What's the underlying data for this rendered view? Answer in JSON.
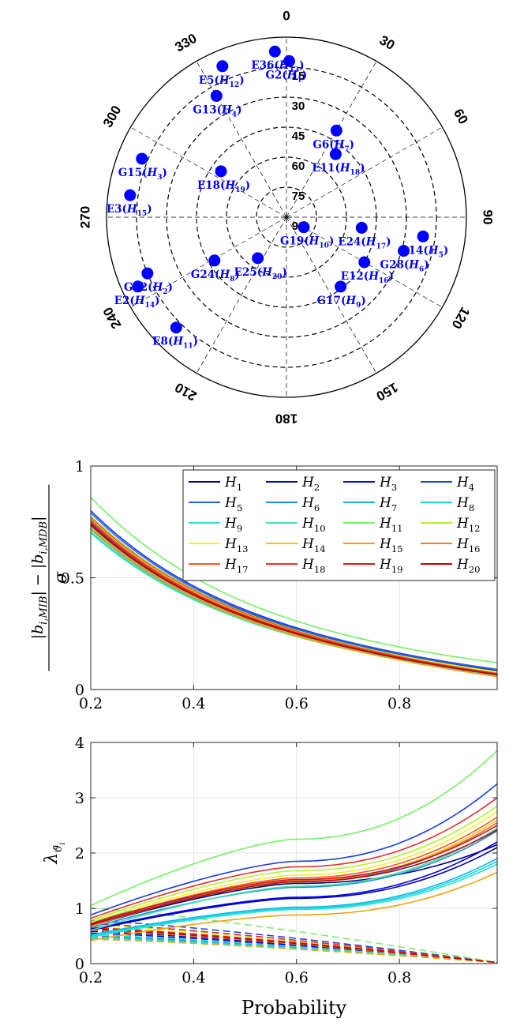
{
  "chart_data": [
    {
      "type": "scatter",
      "subtype": "polar-skyplot",
      "azimuth_tick_labels": [
        "0",
        "30",
        "60",
        "90",
        "120",
        "150",
        "180",
        "210",
        "240",
        "270",
        "300",
        "330"
      ],
      "elevation_tick_labels": [
        "15",
        "30",
        "45",
        "60",
        "75",
        "90"
      ],
      "marker_color": "#0000FF",
      "points": [
        {
          "id": "E36",
          "idx": "13",
          "azimuth": 356,
          "elevation": 7
        },
        {
          "id": "G2",
          "idx": "1",
          "azimuth": 1,
          "elevation": 12
        },
        {
          "id": "E5",
          "idx": "12",
          "azimuth": 337,
          "elevation": 8
        },
        {
          "id": "G13",
          "idx": "4",
          "azimuth": 330,
          "elevation": 20
        },
        {
          "id": "G6",
          "idx": "7",
          "azimuth": 30,
          "elevation": 40
        },
        {
          "id": "E11",
          "idx": "18",
          "azimuth": 38,
          "elevation": 50
        },
        {
          "id": "G15",
          "idx": "3",
          "azimuth": 292,
          "elevation": 12
        },
        {
          "id": "E18",
          "idx": "19",
          "azimuth": 305,
          "elevation": 50
        },
        {
          "id": "E3",
          "idx": "15",
          "azimuth": 278,
          "elevation": 11
        },
        {
          "id": "E24",
          "idx": "17",
          "azimuth": 98,
          "elevation": 52
        },
        {
          "id": "G14",
          "idx": "5",
          "azimuth": 98,
          "elevation": 21
        },
        {
          "id": "G19",
          "idx": "10",
          "azimuth": 120,
          "elevation": 80
        },
        {
          "id": "G28",
          "idx": "6",
          "azimuth": 106,
          "elevation": 29
        },
        {
          "id": "E12",
          "idx": "16",
          "azimuth": 120,
          "elevation": 45
        },
        {
          "id": "G12",
          "idx": "2",
          "azimuth": 248,
          "elevation": 15
        },
        {
          "id": "G24",
          "idx": "8",
          "azimuth": 239,
          "elevation": 48
        },
        {
          "id": "E25",
          "idx": "20",
          "azimuth": 215,
          "elevation": 65
        },
        {
          "id": "G17",
          "idx": "9",
          "azimuth": 142,
          "elevation": 46
        },
        {
          "id": "E2",
          "idx": "14",
          "azimuth": 245,
          "elevation": 8
        },
        {
          "id": "E8",
          "idx": "11",
          "azimuth": 225,
          "elevation": 12
        }
      ]
    },
    {
      "type": "line",
      "xlim": [
        0.2,
        0.99
      ],
      "ylim": [
        0,
        1
      ],
      "xticks": [
        "0.2",
        "0.4",
        "0.6",
        "0.8"
      ],
      "yticks": [
        "0",
        "0.5",
        "1"
      ],
      "ylabel_numerator": "|b_{i,MIB}| − |b_{i,MDB}|",
      "ylabel_denominator": "σ",
      "legend_location": "top-right",
      "grid": true,
      "series": [
        {
          "name": "1",
          "color": "#00007A",
          "start": 0.775,
          "mid": 0.27,
          "end": 0.085
        },
        {
          "name": "2",
          "color": "#0000B3",
          "start": 0.76,
          "mid": 0.262,
          "end": 0.08
        },
        {
          "name": "3",
          "color": "#0000F0",
          "start": 0.745,
          "mid": 0.257,
          "end": 0.075
        },
        {
          "name": "4",
          "color": "#1A3CE6",
          "start": 0.8,
          "mid": 0.28,
          "end": 0.09
        },
        {
          "name": "5",
          "color": "#1F66F0",
          "start": 0.79,
          "mid": 0.275,
          "end": 0.088
        },
        {
          "name": "6",
          "color": "#1C8FE0",
          "start": 0.74,
          "mid": 0.255,
          "end": 0.072
        },
        {
          "name": "7",
          "color": "#12B5E6",
          "start": 0.72,
          "mid": 0.248,
          "end": 0.068
        },
        {
          "name": "8",
          "color": "#12D9E6",
          "start": 0.705,
          "mid": 0.243,
          "end": 0.066
        },
        {
          "name": "9",
          "color": "#26E6CC",
          "start": 0.7,
          "mid": 0.24,
          "end": 0.064
        },
        {
          "name": "10",
          "color": "#45E0A8",
          "start": 0.725,
          "mid": 0.25,
          "end": 0.07
        },
        {
          "name": "11",
          "color": "#73F264",
          "start": 0.86,
          "mid": 0.31,
          "end": 0.12
        },
        {
          "name": "12",
          "color": "#B3F229",
          "start": 0.775,
          "mid": 0.268,
          "end": 0.08
        },
        {
          "name": "13",
          "color": "#F0F026",
          "start": 0.765,
          "mid": 0.263,
          "end": 0.078
        },
        {
          "name": "14",
          "color": "#F2C21A",
          "start": 0.73,
          "mid": 0.25,
          "end": 0.07
        },
        {
          "name": "15",
          "color": "#F2A30D",
          "start": 0.715,
          "mid": 0.243,
          "end": 0.058
        },
        {
          "name": "16",
          "color": "#F08020",
          "start": 0.755,
          "mid": 0.258,
          "end": 0.068
        },
        {
          "name": "17",
          "color": "#F55A22",
          "start": 0.77,
          "mid": 0.265,
          "end": 0.072
        },
        {
          "name": "18",
          "color": "#E62E2E",
          "start": 0.75,
          "mid": 0.258,
          "end": 0.07
        },
        {
          "name": "19",
          "color": "#D01717",
          "start": 0.74,
          "mid": 0.255,
          "end": 0.068
        },
        {
          "name": "20",
          "color": "#B00A0A",
          "start": 0.735,
          "mid": 0.252,
          "end": 0.066
        }
      ]
    },
    {
      "type": "line",
      "xlim": [
        0.2,
        0.99
      ],
      "ylim": [
        0,
        4
      ],
      "xticks": [
        "0.2",
        "0.4",
        "0.6",
        "0.8"
      ],
      "yticks": [
        "0",
        "1",
        "2",
        "3",
        "4"
      ],
      "xlabel": "Probability",
      "ylabel": "λ_{ϑ̄_i}",
      "grid": true,
      "solid_series": [
        {
          "name": "1",
          "start": 0.68,
          "mid": 1.45,
          "end": 2.15
        },
        {
          "name": "2",
          "start": 0.6,
          "mid": 1.18,
          "end": 2.1
        },
        {
          "name": "3",
          "start": 0.62,
          "mid": 1.2,
          "end": 2.2
        },
        {
          "name": "4",
          "start": 0.88,
          "mid": 1.85,
          "end": 3.25
        },
        {
          "name": "5",
          "start": 0.75,
          "mid": 1.48,
          "end": 2.55
        },
        {
          "name": "6",
          "start": 0.65,
          "mid": 1.38,
          "end": 2.4
        },
        {
          "name": "7",
          "start": 0.52,
          "mid": 1.02,
          "end": 1.9
        },
        {
          "name": "8",
          "start": 0.5,
          "mid": 1.0,
          "end": 1.85
        },
        {
          "name": "9",
          "start": 0.48,
          "mid": 0.98,
          "end": 1.8
        },
        {
          "name": "10",
          "start": 0.6,
          "mid": 1.4,
          "end": 2.45
        },
        {
          "name": "11",
          "start": 1.05,
          "mid": 2.25,
          "end": 3.85
        },
        {
          "name": "12",
          "start": 0.78,
          "mid": 1.68,
          "end": 2.85
        },
        {
          "name": "13",
          "start": 0.75,
          "mid": 1.6,
          "end": 2.75
        },
        {
          "name": "14",
          "start": 0.68,
          "mid": 1.5,
          "end": 2.6
        },
        {
          "name": "15",
          "start": 0.42,
          "mid": 0.88,
          "end": 1.65
        },
        {
          "name": "16",
          "start": 0.68,
          "mid": 1.5,
          "end": 2.55
        },
        {
          "name": "17",
          "start": 0.72,
          "mid": 1.55,
          "end": 2.65
        },
        {
          "name": "18",
          "start": 0.82,
          "mid": 1.75,
          "end": 3.0
        },
        {
          "name": "19",
          "start": 0.72,
          "mid": 1.52,
          "end": 2.5
        },
        {
          "name": "20",
          "start": 0.7,
          "mid": 1.48,
          "end": 2.42
        }
      ],
      "dashed_series": [
        {
          "name": "1",
          "start": 0.6,
          "end": 0.02
        },
        {
          "name": "2",
          "start": 0.58,
          "end": 0.02
        },
        {
          "name": "3",
          "start": 0.55,
          "end": 0.02
        },
        {
          "name": "4",
          "start": 0.78,
          "end": 0.02
        },
        {
          "name": "5",
          "start": 0.72,
          "end": 0.02
        },
        {
          "name": "6",
          "start": 0.5,
          "end": 0.02
        },
        {
          "name": "7",
          "start": 0.48,
          "end": 0.02
        },
        {
          "name": "8",
          "start": 0.47,
          "end": 0.02
        },
        {
          "name": "9",
          "start": 0.46,
          "end": 0.02
        },
        {
          "name": "10",
          "start": 0.52,
          "end": 0.02
        },
        {
          "name": "11",
          "start": 1.0,
          "end": 0.02
        },
        {
          "name": "12",
          "start": 0.7,
          "end": 0.02
        },
        {
          "name": "13",
          "start": 0.66,
          "end": 0.02
        },
        {
          "name": "14",
          "start": 0.6,
          "end": 0.02
        },
        {
          "name": "15",
          "start": 0.44,
          "end": 0.02
        },
        {
          "name": "16",
          "start": 0.6,
          "end": 0.02
        },
        {
          "name": "17",
          "start": 0.65,
          "end": 0.02
        },
        {
          "name": "18",
          "start": 0.72,
          "end": 0.02
        },
        {
          "name": "19",
          "start": 0.64,
          "end": 0.02
        },
        {
          "name": "20",
          "start": 0.62,
          "end": 0.02
        }
      ]
    }
  ]
}
